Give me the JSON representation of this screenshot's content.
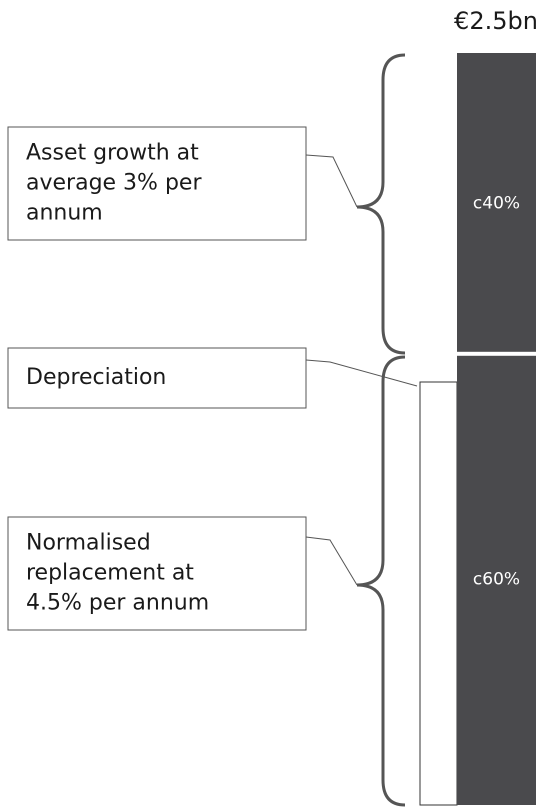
{
  "chart_data": {
    "type": "bar",
    "title": "€2.5bn",
    "series": [
      {
        "color": "#4a4a4d",
        "values": [
          60
        ],
        "value_labels": [
          "c60%"
        ]
      },
      {
        "color": "#4a4a4d",
        "values": [
          40
        ],
        "value_labels": [
          "c40%"
        ]
      }
    ],
    "ylim": [
      0,
      100
    ],
    "annotations": [
      [
        "Asset growth at",
        "average 3% per",
        "annum"
      ],
      [
        "Depreciation"
      ],
      [
        "Normalised",
        "replacement at",
        "4.5% per annum"
      ]
    ]
  }
}
